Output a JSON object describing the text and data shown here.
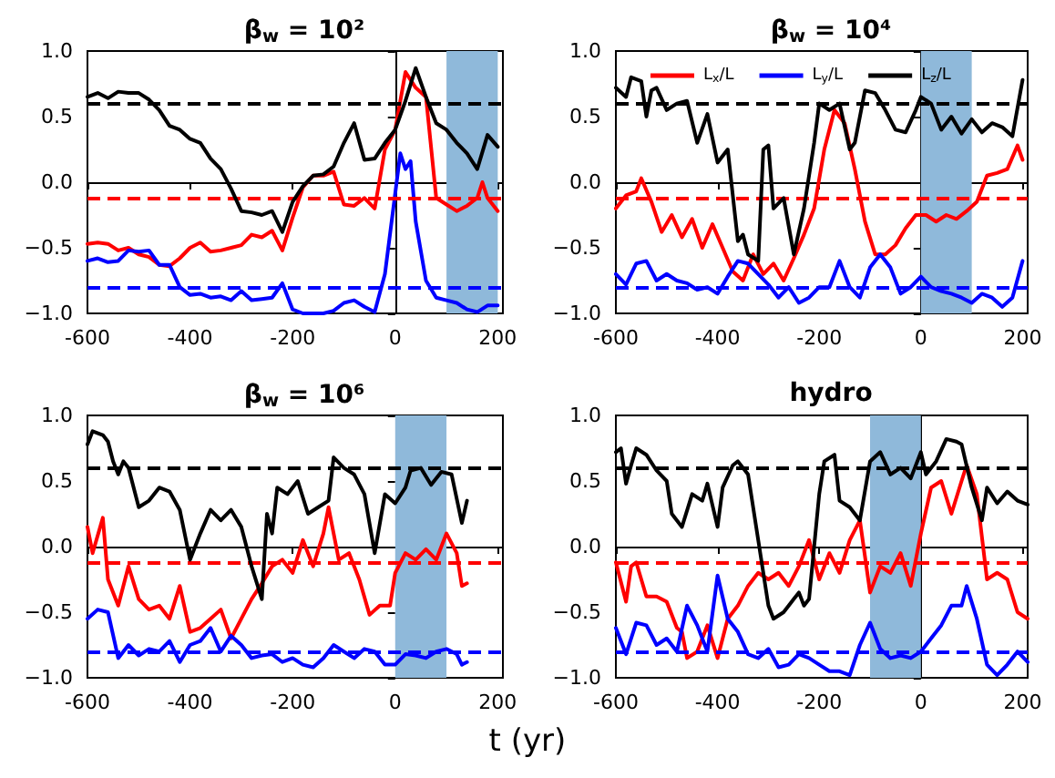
{
  "chart_data": [
    {
      "type": "line",
      "title": "β$_{w}$ = 10²",
      "xlim": [
        -600,
        210
      ],
      "xticks": [
        -600,
        -400,
        -200,
        0,
        200
      ],
      "ylim": [
        -1,
        1
      ],
      "yticks": [
        {
          "value": -1,
          "label": "−1.0"
        },
        {
          "value": -0.5,
          "label": "−0.5"
        },
        {
          "value": 0,
          "label": "0.0"
        },
        {
          "value": 0.5,
          "label": "0.5"
        },
        {
          "value": 1,
          "label": "1.0"
        }
      ],
      "legend": false,
      "series": [
        {
          "color": "#ff0000",
          "x": [
            -600,
            -580,
            -560,
            -540,
            -520,
            -500,
            -480,
            -460,
            -440,
            -420,
            -400,
            -380,
            -360,
            -340,
            -320,
            -300,
            -280,
            -260,
            -240,
            -220,
            -200,
            -180,
            -160,
            -140,
            -120,
            -100,
            -80,
            -60,
            -40,
            -20,
            0,
            20,
            40,
            60,
            80,
            100,
            120,
            140,
            160,
            170,
            180,
            200
          ],
          "values": [
            -0.47,
            -0.46,
            -0.47,
            -0.52,
            -0.5,
            -0.55,
            -0.57,
            -0.63,
            -0.64,
            -0.58,
            -0.5,
            -0.46,
            -0.53,
            -0.52,
            -0.5,
            -0.48,
            -0.4,
            -0.42,
            -0.37,
            -0.52,
            -0.27,
            -0.04,
            0.05,
            0.05,
            0.08,
            -0.17,
            -0.18,
            -0.12,
            -0.2,
            0.25,
            0.4,
            0.84,
            0.72,
            0.65,
            -0.12,
            -0.17,
            -0.22,
            -0.18,
            -0.12,
            0,
            -0.12,
            -0.22
          ]
        },
        {
          "color": "#0000ff",
          "x": [
            -600,
            -580,
            -560,
            -540,
            -520,
            -500,
            -480,
            -460,
            -440,
            -420,
            -400,
            -380,
            -360,
            -340,
            -320,
            -300,
            -280,
            -260,
            -240,
            -220,
            -200,
            -180,
            -160,
            -140,
            -120,
            -100,
            -80,
            -60,
            -40,
            -20,
            10,
            20,
            30,
            40,
            60,
            80,
            100,
            120,
            140,
            160,
            180,
            200
          ],
          "values": [
            -0.6,
            -0.58,
            -0.61,
            -0.6,
            -0.52,
            -0.53,
            -0.52,
            -0.63,
            -0.63,
            -0.8,
            -0.86,
            -0.85,
            -0.88,
            -0.87,
            -0.9,
            -0.83,
            -0.9,
            -0.89,
            -0.88,
            -0.77,
            -0.97,
            -1,
            -1,
            -1,
            -0.98,
            -0.92,
            -0.9,
            -0.95,
            -0.99,
            -0.7,
            0.22,
            0.1,
            0.16,
            -0.3,
            -0.75,
            -0.88,
            -0.9,
            -0.92,
            -0.97,
            -0.99,
            -0.94,
            -0.94
          ]
        },
        {
          "color": "#000000",
          "x": [
            -600,
            -580,
            -560,
            -540,
            -520,
            -500,
            -480,
            -460,
            -440,
            -420,
            -400,
            -380,
            -360,
            -340,
            -320,
            -300,
            -280,
            -260,
            -240,
            -220,
            -200,
            -180,
            -160,
            -140,
            -120,
            -100,
            -80,
            -60,
            -40,
            -20,
            0,
            20,
            40,
            60,
            80,
            100,
            120,
            140,
            160,
            180,
            200
          ],
          "values": [
            0.65,
            0.68,
            0.64,
            0.69,
            0.68,
            0.68,
            0.63,
            0.55,
            0.43,
            0.4,
            0.33,
            0.3,
            0.18,
            0.1,
            -0.05,
            -0.22,
            -0.23,
            -0.25,
            -0.22,
            -0.38,
            -0.15,
            -0.03,
            0.05,
            0.06,
            0.12,
            0.3,
            0.45,
            0.17,
            0.18,
            0.3,
            0.4,
            0.62,
            0.87,
            0.65,
            0.45,
            0.4,
            0.3,
            0.22,
            0.1,
            0.36,
            0.27
          ]
        }
      ],
      "ref_lines": [
        {
          "axis": "y",
          "value": 0.6,
          "color": "#000000",
          "line_style": "dashed"
        },
        {
          "axis": "y",
          "value": -0.12,
          "color": "#ff0000",
          "line_style": "dashed"
        },
        {
          "axis": "y",
          "value": -0.8,
          "color": "#0000ff",
          "line_style": "dashed"
        }
      ],
      "bands": [
        {
          "axis": "x",
          "from": 100,
          "to": 200,
          "color": "#8fb9da"
        }
      ]
    },
    {
      "type": "line",
      "title": "β$_{w}$ = 10⁴",
      "xlim": [
        -600,
        210
      ],
      "xticks": [
        -600,
        -400,
        -200,
        0,
        200
      ],
      "ylim": [
        -1,
        1
      ],
      "yticks": [
        {
          "value": -1,
          "label": "−1.0"
        },
        {
          "value": -0.5,
          "label": "−0.5"
        },
        {
          "value": 0,
          "label": "0.0"
        },
        {
          "value": 0.5,
          "label": "0.5"
        },
        {
          "value": 1,
          "label": "1.0"
        }
      ],
      "legend": "top",
      "series": [
        {
          "name": "L$_{x}$/L",
          "color": "#ff0000",
          "x": [
            -600,
            -580,
            -560,
            -550,
            -530,
            -510,
            -490,
            -470,
            -450,
            -430,
            -410,
            -390,
            -370,
            -350,
            -330,
            -310,
            -290,
            -270,
            -250,
            -230,
            -210,
            -190,
            -170,
            -150,
            -130,
            -110,
            -90,
            -70,
            -50,
            -30,
            -10,
            10,
            30,
            50,
            70,
            90,
            110,
            130,
            150,
            170,
            190,
            200
          ],
          "values": [
            -0.2,
            -0.1,
            -0.07,
            0.03,
            -0.15,
            -0.38,
            -0.25,
            -0.42,
            -0.28,
            -0.5,
            -0.32,
            -0.5,
            -0.68,
            -0.75,
            -0.55,
            -0.7,
            -0.62,
            -0.75,
            -0.58,
            -0.4,
            -0.2,
            0.25,
            0.55,
            0.45,
            0.1,
            -0.3,
            -0.55,
            -0.55,
            -0.48,
            -0.35,
            -0.25,
            -0.25,
            -0.3,
            -0.25,
            -0.28,
            -0.22,
            -0.15,
            0.05,
            0.07,
            0.1,
            0.28,
            0.17
          ]
        },
        {
          "name": "L$_{y}$/L",
          "color": "#0000ff",
          "x": [
            -600,
            -580,
            -560,
            -540,
            -520,
            -500,
            -480,
            -460,
            -440,
            -420,
            -400,
            -380,
            -360,
            -340,
            -320,
            -300,
            -280,
            -260,
            -240,
            -220,
            -200,
            -180,
            -160,
            -140,
            -120,
            -100,
            -80,
            -60,
            -40,
            -20,
            0,
            20,
            40,
            60,
            80,
            100,
            120,
            140,
            160,
            180,
            200
          ],
          "values": [
            -0.7,
            -0.78,
            -0.62,
            -0.6,
            -0.75,
            -0.7,
            -0.75,
            -0.77,
            -0.82,
            -0.8,
            -0.85,
            -0.72,
            -0.6,
            -0.62,
            -0.7,
            -0.78,
            -0.88,
            -0.8,
            -0.92,
            -0.88,
            -0.8,
            -0.8,
            -0.6,
            -0.8,
            -0.88,
            -0.65,
            -0.55,
            -0.65,
            -0.85,
            -0.8,
            -0.72,
            -0.8,
            -0.83,
            -0.85,
            -0.88,
            -0.92,
            -0.85,
            -0.88,
            -0.95,
            -0.88,
            -0.6
          ]
        },
        {
          "name": "L$_{z}$/L",
          "color": "#000000",
          "x": [
            -600,
            -580,
            -570,
            -550,
            -540,
            -530,
            -520,
            -500,
            -480,
            -460,
            -440,
            -420,
            -400,
            -380,
            -360,
            -350,
            -340,
            -320,
            -310,
            -300,
            -290,
            -270,
            -250,
            -230,
            -210,
            -200,
            -180,
            -160,
            -140,
            -130,
            -110,
            -90,
            -70,
            -50,
            -30,
            -10,
            0,
            20,
            40,
            60,
            80,
            100,
            120,
            140,
            160,
            180,
            200
          ],
          "values": [
            0.72,
            0.65,
            0.8,
            0.77,
            0.5,
            0.7,
            0.72,
            0.55,
            0.6,
            0.62,
            0.3,
            0.52,
            0.15,
            0.25,
            -0.45,
            -0.4,
            -0.55,
            -0.6,
            0.25,
            0.28,
            -0.2,
            -0.12,
            -0.55,
            -0.2,
            0.3,
            0.6,
            0.55,
            0.6,
            0.25,
            0.3,
            0.7,
            0.68,
            0.55,
            0.4,
            0.38,
            0.55,
            0.65,
            0.6,
            0.4,
            0.5,
            0.37,
            0.48,
            0.38,
            0.45,
            0.42,
            0.35,
            0.78
          ]
        }
      ],
      "ref_lines": [
        {
          "axis": "y",
          "value": 0.6,
          "color": "#000000",
          "line_style": "dashed"
        },
        {
          "axis": "y",
          "value": -0.12,
          "color": "#ff0000",
          "line_style": "dashed"
        },
        {
          "axis": "y",
          "value": -0.8,
          "color": "#0000ff",
          "line_style": "dashed"
        }
      ],
      "bands": [
        {
          "axis": "x",
          "from": 0,
          "to": 100,
          "color": "#8fb9da"
        }
      ]
    },
    {
      "type": "line",
      "title": "β$_{w}$ = 10⁶",
      "xlabel": "t (yr)",
      "xlim": [
        -600,
        210
      ],
      "xticks": [
        -600,
        -400,
        -200,
        0,
        200
      ],
      "ylim": [
        -1,
        1
      ],
      "yticks": [
        {
          "value": -1,
          "label": "−1.0"
        },
        {
          "value": -0.5,
          "label": "−0.5"
        },
        {
          "value": 0,
          "label": "0.0"
        },
        {
          "value": 0.5,
          "label": "0.5"
        },
        {
          "value": 1,
          "label": "1.0"
        }
      ],
      "legend": false,
      "series": [
        {
          "color": "#ff0000",
          "x": [
            -600,
            -590,
            -570,
            -560,
            -540,
            -520,
            -500,
            -480,
            -460,
            -440,
            -420,
            -400,
            -380,
            -360,
            -340,
            -320,
            -300,
            -280,
            -260,
            -240,
            -220,
            -200,
            -180,
            -160,
            -140,
            -130,
            -110,
            -90,
            -70,
            -50,
            -30,
            -10,
            0,
            20,
            40,
            60,
            80,
            100,
            120,
            130,
            140
          ],
          "values": [
            0.15,
            -0.05,
            0.22,
            -0.25,
            -0.45,
            -0.15,
            -0.4,
            -0.48,
            -0.45,
            -0.55,
            -0.3,
            -0.65,
            -0.62,
            -0.55,
            -0.48,
            -0.7,
            -0.55,
            -0.4,
            -0.28,
            -0.15,
            -0.1,
            -0.2,
            0.05,
            -0.15,
            0.1,
            0.3,
            -0.1,
            -0.05,
            -0.25,
            -0.52,
            -0.45,
            -0.45,
            -0.2,
            -0.05,
            -0.1,
            -0.02,
            -0.1,
            0.1,
            -0.05,
            -0.3,
            -0.28
          ]
        },
        {
          "color": "#0000ff",
          "x": [
            -600,
            -580,
            -560,
            -540,
            -520,
            -500,
            -480,
            -460,
            -440,
            -420,
            -400,
            -380,
            -360,
            -340,
            -320,
            -300,
            -280,
            -260,
            -240,
            -220,
            -200,
            -180,
            -160,
            -140,
            -120,
            -100,
            -80,
            -60,
            -40,
            -20,
            0,
            20,
            40,
            60,
            80,
            100,
            120,
            130,
            140
          ],
          "values": [
            -0.55,
            -0.48,
            -0.5,
            -0.85,
            -0.75,
            -0.83,
            -0.78,
            -0.8,
            -0.72,
            -0.88,
            -0.75,
            -0.72,
            -0.62,
            -0.8,
            -0.68,
            -0.75,
            -0.85,
            -0.83,
            -0.82,
            -0.88,
            -0.85,
            -0.9,
            -0.92,
            -0.85,
            -0.75,
            -0.8,
            -0.85,
            -0.78,
            -0.8,
            -0.9,
            -0.9,
            -0.82,
            -0.83,
            -0.85,
            -0.8,
            -0.78,
            -0.82,
            -0.9,
            -0.88
          ]
        },
        {
          "color": "#000000",
          "x": [
            -600,
            -590,
            -570,
            -560,
            -550,
            -540,
            -530,
            -520,
            -500,
            -480,
            -460,
            -440,
            -420,
            -400,
            -380,
            -360,
            -340,
            -320,
            -300,
            -280,
            -260,
            -250,
            -240,
            -230,
            -210,
            -190,
            -170,
            -150,
            -130,
            -120,
            -100,
            -80,
            -60,
            -40,
            -20,
            0,
            20,
            30,
            50,
            70,
            90,
            110,
            130,
            140
          ],
          "values": [
            0.78,
            0.88,
            0.85,
            0.8,
            0.65,
            0.55,
            0.65,
            0.6,
            0.3,
            0.35,
            0.45,
            0.42,
            0.28,
            -0.1,
            0.1,
            0.28,
            0.2,
            0.28,
            0.15,
            -0.15,
            -0.4,
            0.25,
            0.1,
            0.45,
            0.4,
            0.5,
            0.25,
            0.3,
            0.35,
            0.68,
            0.6,
            0.55,
            0.4,
            -0.05,
            0.4,
            0.33,
            0.45,
            0.58,
            0.6,
            0.47,
            0.57,
            0.55,
            0.18,
            0.35
          ]
        }
      ],
      "ref_lines": [
        {
          "axis": "y",
          "value": 0.6,
          "color": "#000000",
          "line_style": "dashed"
        },
        {
          "axis": "y",
          "value": -0.12,
          "color": "#ff0000",
          "line_style": "dashed"
        },
        {
          "axis": "y",
          "value": -0.8,
          "color": "#0000ff",
          "line_style": "dashed"
        }
      ],
      "bands": [
        {
          "axis": "x",
          "from": 0,
          "to": 100,
          "color": "#8fb9da"
        }
      ]
    },
    {
      "type": "line",
      "title": "hydro",
      "xlim": [
        -600,
        210
      ],
      "xticks": [
        -600,
        -400,
        -200,
        0,
        200
      ],
      "ylim": [
        -1,
        1
      ],
      "yticks": [
        {
          "value": -1,
          "label": "−1.0"
        },
        {
          "value": -0.5,
          "label": "−0.5"
        },
        {
          "value": 0,
          "label": "0.0"
        },
        {
          "value": 0.5,
          "label": "0.5"
        },
        {
          "value": 1,
          "label": "1.0"
        }
      ],
      "legend": false,
      "series": [
        {
          "color": "#ff0000",
          "x": [
            -600,
            -580,
            -570,
            -560,
            -540,
            -520,
            -500,
            -480,
            -470,
            -460,
            -440,
            -420,
            -400,
            -380,
            -360,
            -340,
            -320,
            -300,
            -280,
            -260,
            -240,
            -220,
            -200,
            -180,
            -160,
            -140,
            -120,
            -100,
            -80,
            -60,
            -40,
            -20,
            0,
            20,
            40,
            60,
            80,
            90,
            110,
            130,
            150,
            170,
            190,
            210
          ],
          "values": [
            -0.12,
            -0.42,
            -0.15,
            -0.12,
            -0.38,
            -0.38,
            -0.42,
            -0.62,
            -0.65,
            -0.85,
            -0.8,
            -0.6,
            -0.85,
            -0.55,
            -0.45,
            -0.3,
            -0.2,
            -0.25,
            -0.2,
            -0.3,
            -0.15,
            0.05,
            -0.25,
            -0.05,
            -0.2,
            0.05,
            0.2,
            -0.35,
            -0.15,
            -0.2,
            -0.05,
            -0.3,
            0.1,
            0.45,
            0.5,
            0.25,
            0.5,
            0.62,
            0.4,
            -0.25,
            -0.2,
            -0.25,
            -0.5,
            -0.55
          ]
        },
        {
          "color": "#0000ff",
          "x": [
            -600,
            -580,
            -560,
            -540,
            -520,
            -500,
            -480,
            -460,
            -440,
            -420,
            -400,
            -380,
            -360,
            -340,
            -320,
            -300,
            -280,
            -260,
            -240,
            -220,
            -200,
            -180,
            -160,
            -140,
            -120,
            -100,
            -80,
            -60,
            -40,
            -20,
            0,
            20,
            40,
            60,
            80,
            90,
            110,
            130,
            150,
            170,
            190,
            210
          ],
          "values": [
            -0.62,
            -0.82,
            -0.58,
            -0.6,
            -0.75,
            -0.7,
            -0.8,
            -0.45,
            -0.6,
            -0.8,
            -0.22,
            -0.55,
            -0.65,
            -0.82,
            -0.85,
            -0.78,
            -0.92,
            -0.9,
            -0.82,
            -0.85,
            -0.9,
            -0.95,
            -0.95,
            -0.98,
            -0.75,
            -0.58,
            -0.78,
            -0.85,
            -0.83,
            -0.85,
            -0.8,
            -0.7,
            -0.6,
            -0.45,
            -0.45,
            -0.3,
            -0.55,
            -0.9,
            -0.98,
            -0.9,
            -0.8,
            -0.88
          ]
        },
        {
          "color": "#000000",
          "x": [
            -600,
            -590,
            -580,
            -570,
            -560,
            -540,
            -520,
            -500,
            -490,
            -470,
            -450,
            -430,
            -420,
            -400,
            -390,
            -370,
            -360,
            -340,
            -320,
            -300,
            -290,
            -270,
            -250,
            -240,
            -230,
            -220,
            -200,
            -190,
            -170,
            -160,
            -140,
            -120,
            -100,
            -80,
            -60,
            -40,
            -20,
            0,
            10,
            30,
            50,
            70,
            80,
            100,
            120,
            130,
            150,
            170,
            190,
            210
          ],
          "values": [
            0.72,
            0.75,
            0.48,
            0.62,
            0.75,
            0.7,
            0.58,
            0.5,
            0.25,
            0.15,
            0.4,
            0.35,
            0.48,
            0.15,
            0.45,
            0.62,
            0.65,
            0.55,
            0.05,
            -0.45,
            -0.55,
            -0.5,
            -0.4,
            -0.35,
            -0.45,
            -0.4,
            0.4,
            0.65,
            0.7,
            0.35,
            0.3,
            0.2,
            0.65,
            0.72,
            0.55,
            0.6,
            0.52,
            0.72,
            0.55,
            0.65,
            0.82,
            0.8,
            0.78,
            0.45,
            0.2,
            0.45,
            0.33,
            0.42,
            0.35,
            0.32
          ]
        }
      ],
      "ref_lines": [
        {
          "axis": "y",
          "value": 0.6,
          "color": "#000000",
          "line_style": "dashed"
        },
        {
          "axis": "y",
          "value": -0.12,
          "color": "#ff0000",
          "line_style": "dashed"
        },
        {
          "axis": "y",
          "value": -0.8,
          "color": "#0000ff",
          "line_style": "dashed"
        }
      ],
      "bands": [
        {
          "axis": "x",
          "from": -100,
          "to": 0,
          "color": "#8fb9da"
        }
      ]
    }
  ]
}
